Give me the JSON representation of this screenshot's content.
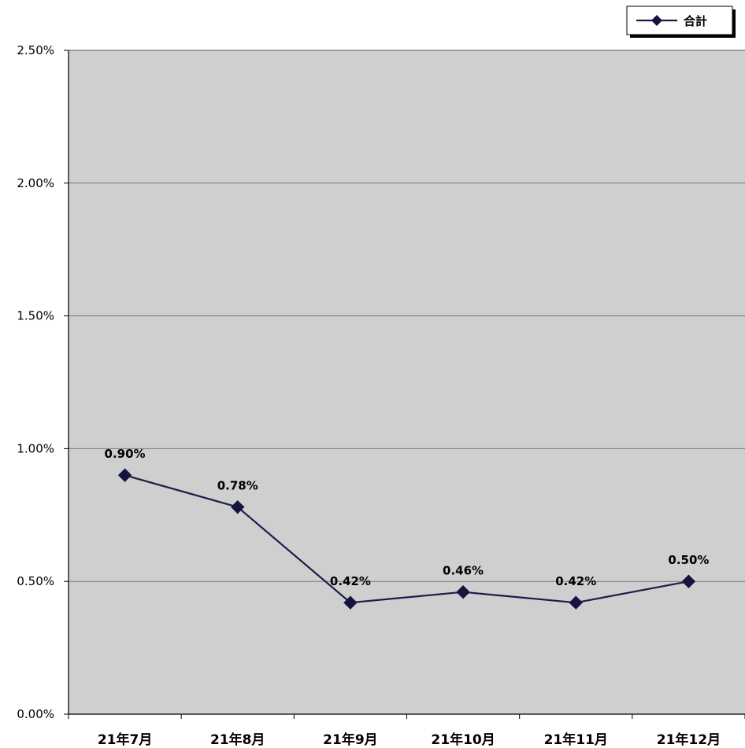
{
  "chart_data": {
    "type": "line",
    "categories": [
      "21年7月",
      "21年8月",
      "21年9月",
      "21年10月",
      "21年11月",
      "21年12月"
    ],
    "series": [
      {
        "name": "合計",
        "values": [
          0.9,
          0.78,
          0.42,
          0.46,
          0.42,
          0.5
        ],
        "labels": [
          "0.90%",
          "0.78%",
          "0.42%",
          "0.46%",
          "0.42%",
          "0.50%"
        ]
      }
    ],
    "y_ticks": [
      "0.00%",
      "0.50%",
      "1.00%",
      "1.50%",
      "2.00%",
      "2.50%"
    ],
    "ylim": [
      0,
      2.5
    ],
    "y_unit": "%",
    "grid": true,
    "legend_position": "top-right",
    "colors": {
      "line": "#1c1c4a",
      "marker": "#141440",
      "plot_background": "#cfcfcf",
      "gridline": "#7a7a7a",
      "page_background": "#ffffff"
    }
  }
}
